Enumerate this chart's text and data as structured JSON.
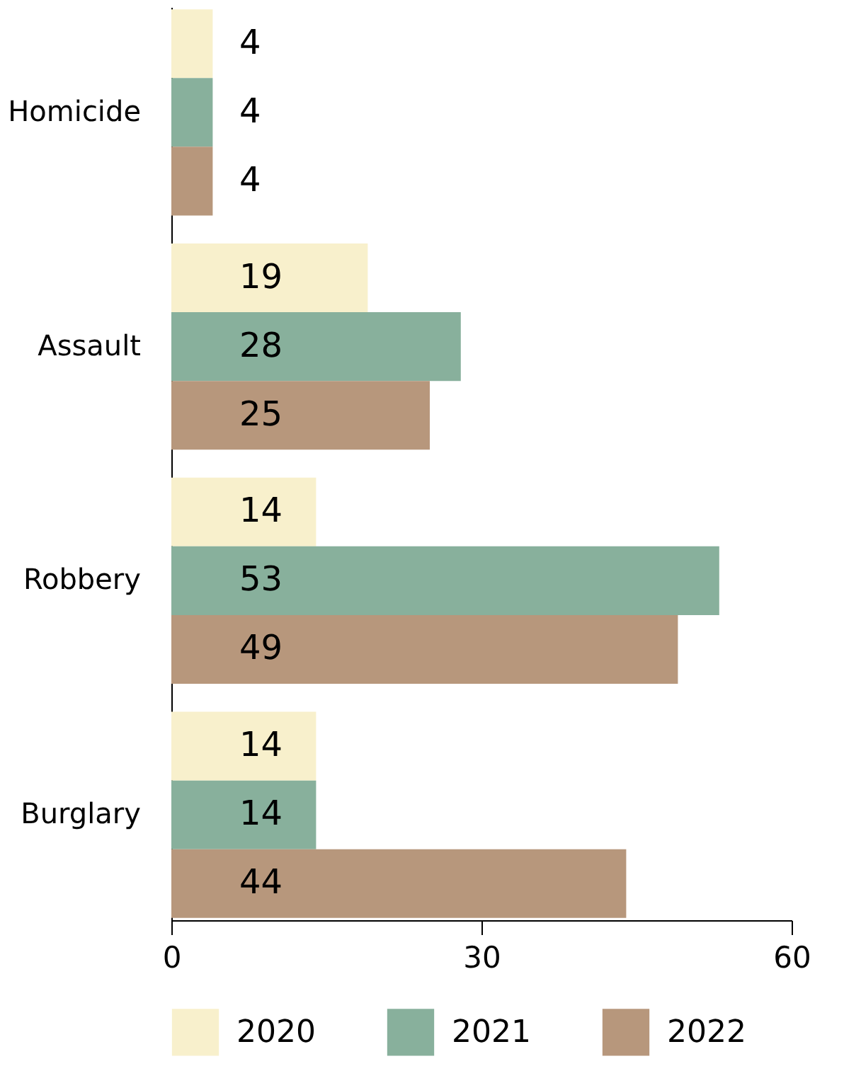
{
  "chart_data": {
    "type": "bar",
    "orientation": "horizontal",
    "categories": [
      "Homicide",
      "Assault",
      "Robbery",
      "Burglary"
    ],
    "series": [
      {
        "name": "2020",
        "color": "#f8f0cc",
        "values": [
          4,
          19,
          14,
          14
        ]
      },
      {
        "name": "2021",
        "color": "#88b09c",
        "values": [
          4,
          28,
          53,
          14
        ]
      },
      {
        "name": "2022",
        "color": "#b7977c",
        "values": [
          4,
          25,
          49,
          44
        ]
      }
    ],
    "xlim": [
      0,
      60
    ],
    "xticks": [
      0,
      30,
      60
    ],
    "data_labels": true,
    "grid": false,
    "legend": "bottom"
  }
}
